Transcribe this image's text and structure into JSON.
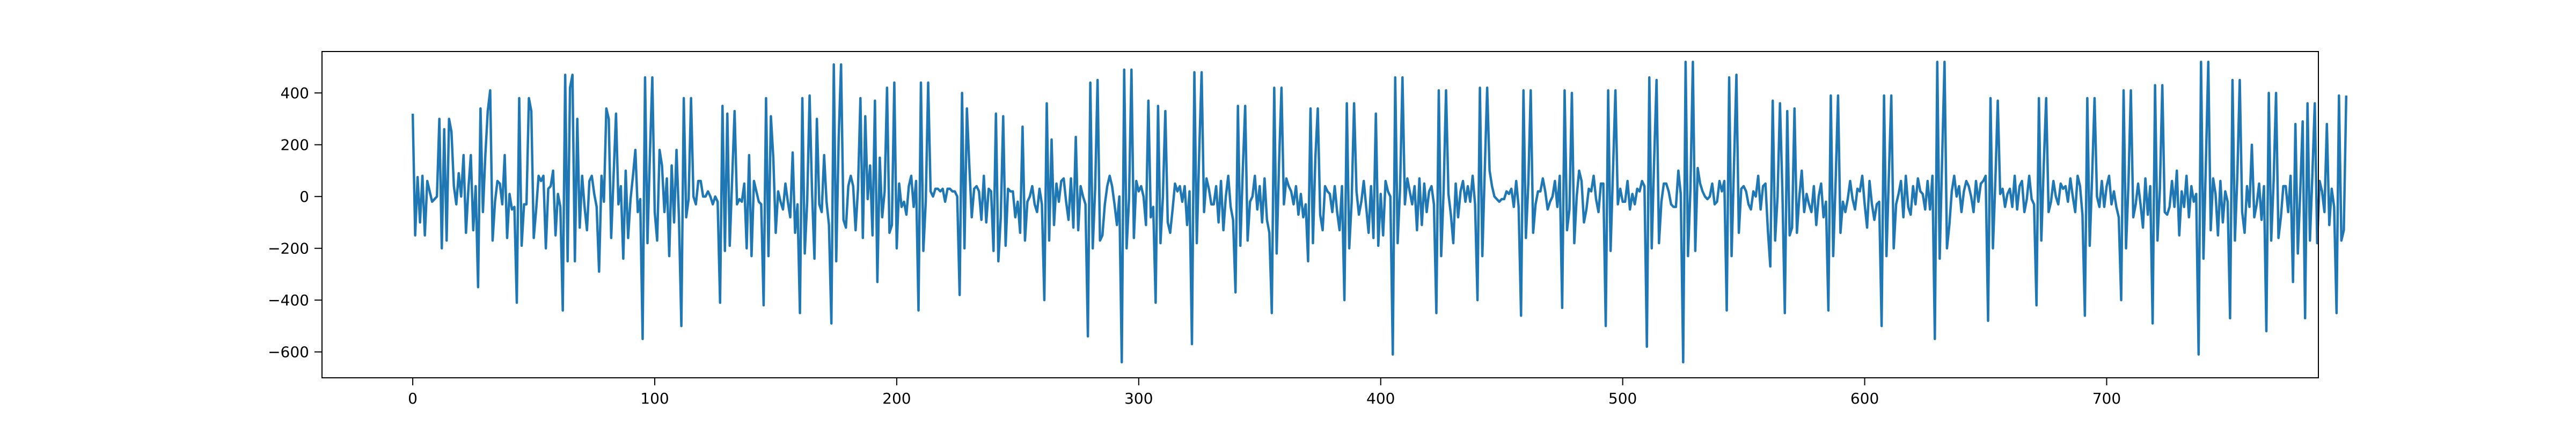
{
  "chart_data": {
    "type": "line",
    "title": "",
    "xlabel": "",
    "ylabel": "",
    "xlim": [
      -37.5,
      787.5
    ],
    "ylim": [
      -700,
      560
    ],
    "xticks": [
      0,
      100,
      200,
      300,
      400,
      500,
      600,
      700
    ],
    "yticks": [
      -600,
      -400,
      -200,
      0,
      200,
      400
    ],
    "xtick_labels": [
      "0",
      "100",
      "200",
      "300",
      "400",
      "500",
      "600",
      "700"
    ],
    "ytick_labels": [
      "−600",
      "−400",
      "−200",
      "0",
      "200",
      "400"
    ],
    "grid": false,
    "legend": "none",
    "line_color": "#1f77b4",
    "series": [
      {
        "values": [
          320,
          -150,
          75,
          -100,
          80,
          -150,
          60,
          20,
          -20,
          -10,
          0,
          300,
          -200,
          260,
          -170,
          300,
          250,
          40,
          -30,
          90,
          0,
          160,
          -140,
          30,
          160,
          -130,
          40,
          -350,
          340,
          -60,
          160,
          330,
          410,
          -170,
          -20,
          60,
          50,
          -30,
          160,
          -160,
          10,
          -50,
          -40,
          -410,
          380,
          -190,
          -30,
          -30,
          380,
          330,
          -160,
          -50,
          80,
          60,
          80,
          -200,
          30,
          40,
          100,
          -150,
          10,
          -40,
          -440,
          470,
          -250,
          420,
          470,
          -250,
          300,
          -120,
          80,
          -40,
          -130,
          60,
          80,
          10,
          -40,
          -290,
          80,
          -20,
          340,
          300,
          -160,
          80,
          320,
          -30,
          40,
          -240,
          100,
          -160,
          -10,
          80,
          180,
          -60,
          -10,
          -550,
          460,
          -180,
          160,
          460,
          -60,
          -170,
          180,
          120,
          -60,
          70,
          -230,
          120,
          -100,
          180,
          -80,
          -500,
          380,
          -80,
          -10,
          380,
          0,
          -30,
          60,
          60,
          0,
          0,
          20,
          0,
          -30,
          0,
          -20,
          -410,
          350,
          -210,
          320,
          -190,
          70,
          330,
          -30,
          -10,
          -20,
          50,
          -200,
          160,
          -230,
          60,
          20,
          -20,
          -30,
          -420,
          380,
          -230,
          310,
          150,
          -140,
          20,
          -20,
          -50,
          50,
          -20,
          -80,
          170,
          -140,
          -30,
          -450,
          380,
          -220,
          -20,
          390,
          20,
          -240,
          300,
          -30,
          -60,
          160,
          -20,
          -110,
          -490,
          510,
          -250,
          220,
          510,
          -90,
          -120,
          40,
          80,
          40,
          -130,
          30,
          380,
          -160,
          310,
          -10,
          120,
          -150,
          370,
          -330,
          150,
          -80,
          20,
          420,
          -140,
          -110,
          440,
          -200,
          50,
          -40,
          -20,
          -70,
          40,
          80,
          -40,
          60,
          -440,
          440,
          -210,
          -20,
          440,
          20,
          0,
          30,
          30,
          20,
          30,
          -20,
          30,
          30,
          20,
          20,
          0,
          -380,
          400,
          -200,
          340,
          120,
          -80,
          30,
          40,
          20,
          -90,
          80,
          -100,
          30,
          20,
          -210,
          320,
          -250,
          -80,
          310,
          -190,
          30,
          20,
          20,
          -80,
          -20,
          -140,
          270,
          -170,
          -20,
          0,
          40,
          -30,
          -60,
          30,
          -30,
          -400,
          360,
          -170,
          220,
          -110,
          50,
          -20,
          60,
          70,
          -20,
          -90,
          70,
          -120,
          230,
          -130,
          40,
          0,
          -30,
          -540,
          440,
          -200,
          30,
          450,
          -170,
          -150,
          -30,
          40,
          80,
          40,
          -30,
          -110,
          0,
          -640,
          490,
          -200,
          -10,
          490,
          -160,
          60,
          20,
          40,
          0,
          -110,
          370,
          -80,
          -40,
          -410,
          350,
          -180,
          0,
          330,
          -100,
          -140,
          -50,
          50,
          20,
          40,
          -20,
          40,
          -110,
          20,
          -570,
          480,
          -180,
          170,
          480,
          -60,
          70,
          30,
          -30,
          -30,
          40,
          -100,
          60,
          -130,
          0,
          80,
          -40,
          -90,
          -370,
          350,
          -190,
          100,
          350,
          -170,
          -20,
          0,
          80,
          -50,
          40,
          -100,
          70,
          -90,
          -140,
          -450,
          420,
          -220,
          130,
          420,
          -30,
          70,
          40,
          20,
          -30,
          40,
          -70,
          10,
          -80,
          -30,
          -250,
          340,
          -180,
          150,
          340,
          -70,
          -130,
          40,
          20,
          10,
          -60,
          40,
          -60,
          -130,
          40,
          -400,
          360,
          -200,
          -20,
          360,
          20,
          -70,
          -20,
          60,
          -40,
          -140,
          40,
          -160,
          320,
          -190,
          10,
          -150,
          60,
          20,
          0,
          -610,
          460,
          -180,
          30,
          460,
          -30,
          70,
          20,
          -30,
          40,
          -130,
          70,
          -110,
          50,
          -60,
          20,
          40,
          -30,
          -450,
          410,
          -230,
          20,
          410,
          10,
          -70,
          -180,
          50,
          -80,
          20,
          60,
          -20,
          40,
          -20,
          80,
          -30,
          -400,
          420,
          -230,
          100,
          420,
          100,
          40,
          0,
          -10,
          -20,
          -10,
          -10,
          20,
          10,
          30,
          -40,
          60,
          -40,
          -460,
          410,
          -160,
          50,
          410,
          -140,
          -30,
          20,
          20,
          70,
          20,
          -50,
          -20,
          0,
          60,
          -40,
          80,
          -430,
          410,
          -130,
          -50,
          400,
          -180,
          0,
          100,
          60,
          -100,
          -50,
          30,
          20,
          80,
          -10,
          -60,
          50,
          50,
          -500,
          410,
          -210,
          100,
          410,
          -30,
          30,
          -20,
          -20,
          60,
          -50,
          10,
          -30,
          30,
          20,
          60,
          40,
          -580,
          460,
          -200,
          140,
          450,
          -180,
          -20,
          50,
          50,
          20,
          -30,
          -40,
          -40,
          100,
          10,
          -640,
          520,
          -230,
          30,
          520,
          -210,
          110,
          50,
          20,
          0,
          -10,
          0,
          50,
          -30,
          -20,
          60,
          20,
          60,
          -440,
          460,
          -230,
          120,
          470,
          -140,
          30,
          40,
          20,
          -30,
          -50,
          20,
          0,
          80,
          -50,
          40,
          50,
          -130,
          -270,
          370,
          -170,
          0,
          360,
          20,
          -450,
          330,
          -150,
          -120,
          340,
          -140,
          0,
          100,
          -60,
          10,
          -30,
          -60,
          40,
          -110,
          0,
          50,
          -80,
          -20,
          -440,
          390,
          -230,
          60,
          390,
          -140,
          -20,
          -60,
          -10,
          60,
          -10,
          -50,
          30,
          20,
          80,
          -30,
          -120,
          60,
          -30,
          -90,
          -30,
          -20,
          -500,
          390,
          -230,
          80,
          390,
          -200,
          -30,
          10,
          60,
          -80,
          80,
          -40,
          -70,
          40,
          -30,
          70,
          20,
          10,
          -50,
          60,
          -50,
          80,
          -550,
          520,
          -240,
          140,
          520,
          -200,
          -110,
          20,
          80,
          0,
          40,
          -60,
          20,
          60,
          40,
          0,
          -60,
          60,
          -20,
          50,
          60,
          80,
          -480,
          380,
          -200,
          60,
          370,
          10,
          30,
          -40,
          10,
          30,
          -40,
          80,
          -50,
          40,
          60,
          -60,
          -10,
          80,
          -10,
          -30,
          -420,
          380,
          -170,
          120,
          380,
          -60,
          -20,
          60,
          0,
          -30,
          50,
          30,
          40,
          -20,
          70,
          0,
          -60,
          80,
          40,
          -70,
          -460,
          380,
          -190,
          80,
          380,
          0,
          -40,
          60,
          -40,
          40,
          80,
          -30,
          20,
          -40,
          -80,
          -400,
          410,
          -200,
          50,
          410,
          -80,
          -30,
          50,
          -30,
          -120,
          70,
          -70,
          40,
          -490,
          430,
          -170,
          30,
          430,
          -60,
          -70,
          -40,
          60,
          -40,
          100,
          -150,
          20,
          -40,
          80,
          -80,
          40,
          -20,
          10,
          -610,
          520,
          -240,
          130,
          520,
          -130,
          70,
          10,
          -150,
          60,
          -100,
          20,
          -20,
          -470,
          450,
          -170,
          80,
          450,
          -60,
          -140,
          40,
          -40,
          200,
          -80,
          -30,
          50,
          -90,
          40,
          -520,
          400,
          -170,
          60,
          400,
          -160,
          -80,
          40,
          40,
          -60,
          80,
          -330,
          280,
          -220,
          20,
          290,
          -470,
          360,
          -170,
          80,
          360,
          -180,
          60,
          20,
          -60,
          280,
          -110,
          30,
          -40,
          -450,
          390,
          -170,
          -130,
          390
        ]
      }
    ]
  }
}
